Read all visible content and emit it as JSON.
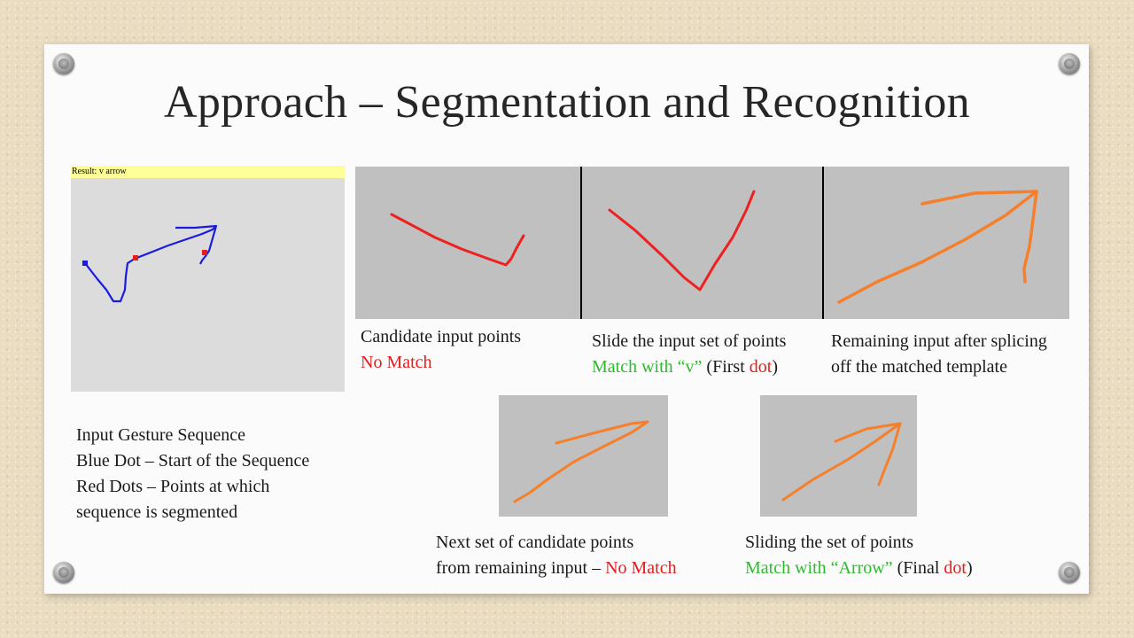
{
  "slide": {
    "title": "Approach – Segmentation and Recognition",
    "result_label": "Result:  v arrow",
    "input_desc": {
      "line1": "Input Gesture Sequence",
      "line2": "Blue Dot – Start of the Sequence",
      "line3": "Red Dots – Points at which",
      "line4": "sequence is segmented"
    },
    "cap1": {
      "line1": "Candidate input points",
      "line2": "No Match"
    },
    "cap2": {
      "line1": "Slide the input set of points",
      "match_prefix": "Match with “v”",
      "paren_open": " (First ",
      "dot_word": "dot",
      "paren_close": ")"
    },
    "cap3": {
      "line1": "Remaining input after splicing",
      "line2": "off  the matched template"
    },
    "cap4": {
      "line1": "Next set of candidate points",
      "line2_prefix": "from remaining input – ",
      "line2_red": "No Match"
    },
    "cap5": {
      "line1": "Sliding the set of points",
      "match_prefix": "Match with “Arrow”",
      "paren_open": " (Final ",
      "dot_word": "dot",
      "paren_close": ")"
    }
  },
  "colors": {
    "red_text": "#e81b1b",
    "green_text": "#2dbb2d",
    "stroke_red": "#ee2020",
    "stroke_orange": "#f57f2a",
    "stroke_blue": "#1a1ae0",
    "panel_gray": "#c0c0c0",
    "result_bar": "#ffff99"
  }
}
